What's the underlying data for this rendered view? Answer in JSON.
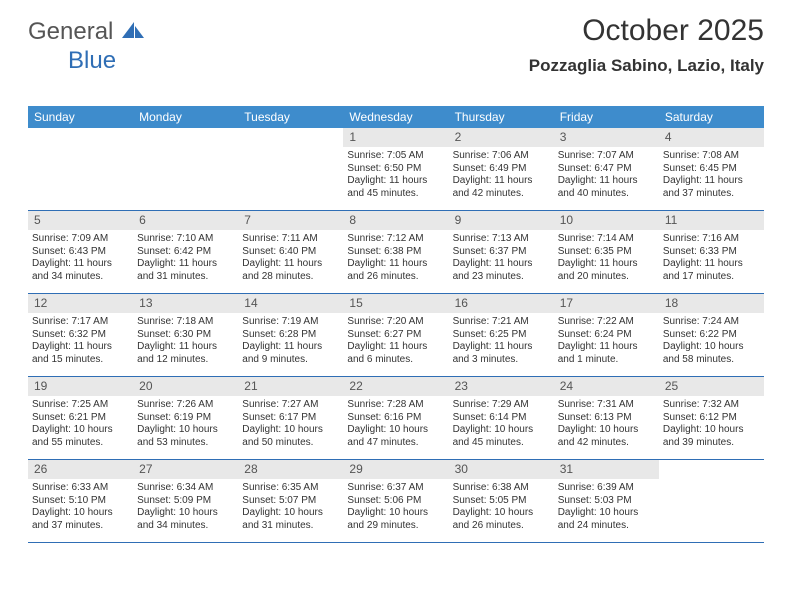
{
  "brand": {
    "part1": "General",
    "part2": "Blue"
  },
  "title": "October 2025",
  "location": "Pozzaglia Sabino, Lazio, Italy",
  "colors": {
    "header_bg": "#3e8ccc",
    "header_text": "#ffffff",
    "border": "#2f6eb5",
    "daynum_bg": "#e8e8e8",
    "text": "#333333",
    "brand_blue": "#2f6eb5",
    "brand_gray": "#555555",
    "background": "#ffffff"
  },
  "fonts": {
    "title_size_pt": 22,
    "location_size_pt": 13,
    "dayheader_size_pt": 9,
    "daynum_size_pt": 9,
    "body_size_pt": 7.5
  },
  "day_names": [
    "Sunday",
    "Monday",
    "Tuesday",
    "Wednesday",
    "Thursday",
    "Friday",
    "Saturday"
  ],
  "weeks": [
    [
      {
        "num": "",
        "info": ""
      },
      {
        "num": "",
        "info": ""
      },
      {
        "num": "",
        "info": ""
      },
      {
        "num": "1",
        "info": "Sunrise: 7:05 AM\nSunset: 6:50 PM\nDaylight: 11 hours and 45 minutes."
      },
      {
        "num": "2",
        "info": "Sunrise: 7:06 AM\nSunset: 6:49 PM\nDaylight: 11 hours and 42 minutes."
      },
      {
        "num": "3",
        "info": "Sunrise: 7:07 AM\nSunset: 6:47 PM\nDaylight: 11 hours and 40 minutes."
      },
      {
        "num": "4",
        "info": "Sunrise: 7:08 AM\nSunset: 6:45 PM\nDaylight: 11 hours and 37 minutes."
      }
    ],
    [
      {
        "num": "5",
        "info": "Sunrise: 7:09 AM\nSunset: 6:43 PM\nDaylight: 11 hours and 34 minutes."
      },
      {
        "num": "6",
        "info": "Sunrise: 7:10 AM\nSunset: 6:42 PM\nDaylight: 11 hours and 31 minutes."
      },
      {
        "num": "7",
        "info": "Sunrise: 7:11 AM\nSunset: 6:40 PM\nDaylight: 11 hours and 28 minutes."
      },
      {
        "num": "8",
        "info": "Sunrise: 7:12 AM\nSunset: 6:38 PM\nDaylight: 11 hours and 26 minutes."
      },
      {
        "num": "9",
        "info": "Sunrise: 7:13 AM\nSunset: 6:37 PM\nDaylight: 11 hours and 23 minutes."
      },
      {
        "num": "10",
        "info": "Sunrise: 7:14 AM\nSunset: 6:35 PM\nDaylight: 11 hours and 20 minutes."
      },
      {
        "num": "11",
        "info": "Sunrise: 7:16 AM\nSunset: 6:33 PM\nDaylight: 11 hours and 17 minutes."
      }
    ],
    [
      {
        "num": "12",
        "info": "Sunrise: 7:17 AM\nSunset: 6:32 PM\nDaylight: 11 hours and 15 minutes."
      },
      {
        "num": "13",
        "info": "Sunrise: 7:18 AM\nSunset: 6:30 PM\nDaylight: 11 hours and 12 minutes."
      },
      {
        "num": "14",
        "info": "Sunrise: 7:19 AM\nSunset: 6:28 PM\nDaylight: 11 hours and 9 minutes."
      },
      {
        "num": "15",
        "info": "Sunrise: 7:20 AM\nSunset: 6:27 PM\nDaylight: 11 hours and 6 minutes."
      },
      {
        "num": "16",
        "info": "Sunrise: 7:21 AM\nSunset: 6:25 PM\nDaylight: 11 hours and 3 minutes."
      },
      {
        "num": "17",
        "info": "Sunrise: 7:22 AM\nSunset: 6:24 PM\nDaylight: 11 hours and 1 minute."
      },
      {
        "num": "18",
        "info": "Sunrise: 7:24 AM\nSunset: 6:22 PM\nDaylight: 10 hours and 58 minutes."
      }
    ],
    [
      {
        "num": "19",
        "info": "Sunrise: 7:25 AM\nSunset: 6:21 PM\nDaylight: 10 hours and 55 minutes."
      },
      {
        "num": "20",
        "info": "Sunrise: 7:26 AM\nSunset: 6:19 PM\nDaylight: 10 hours and 53 minutes."
      },
      {
        "num": "21",
        "info": "Sunrise: 7:27 AM\nSunset: 6:17 PM\nDaylight: 10 hours and 50 minutes."
      },
      {
        "num": "22",
        "info": "Sunrise: 7:28 AM\nSunset: 6:16 PM\nDaylight: 10 hours and 47 minutes."
      },
      {
        "num": "23",
        "info": "Sunrise: 7:29 AM\nSunset: 6:14 PM\nDaylight: 10 hours and 45 minutes."
      },
      {
        "num": "24",
        "info": "Sunrise: 7:31 AM\nSunset: 6:13 PM\nDaylight: 10 hours and 42 minutes."
      },
      {
        "num": "25",
        "info": "Sunrise: 7:32 AM\nSunset: 6:12 PM\nDaylight: 10 hours and 39 minutes."
      }
    ],
    [
      {
        "num": "26",
        "info": "Sunrise: 6:33 AM\nSunset: 5:10 PM\nDaylight: 10 hours and 37 minutes."
      },
      {
        "num": "27",
        "info": "Sunrise: 6:34 AM\nSunset: 5:09 PM\nDaylight: 10 hours and 34 minutes."
      },
      {
        "num": "28",
        "info": "Sunrise: 6:35 AM\nSunset: 5:07 PM\nDaylight: 10 hours and 31 minutes."
      },
      {
        "num": "29",
        "info": "Sunrise: 6:37 AM\nSunset: 5:06 PM\nDaylight: 10 hours and 29 minutes."
      },
      {
        "num": "30",
        "info": "Sunrise: 6:38 AM\nSunset: 5:05 PM\nDaylight: 10 hours and 26 minutes."
      },
      {
        "num": "31",
        "info": "Sunrise: 6:39 AM\nSunset: 5:03 PM\nDaylight: 10 hours and 24 minutes."
      },
      {
        "num": "",
        "info": ""
      }
    ]
  ]
}
